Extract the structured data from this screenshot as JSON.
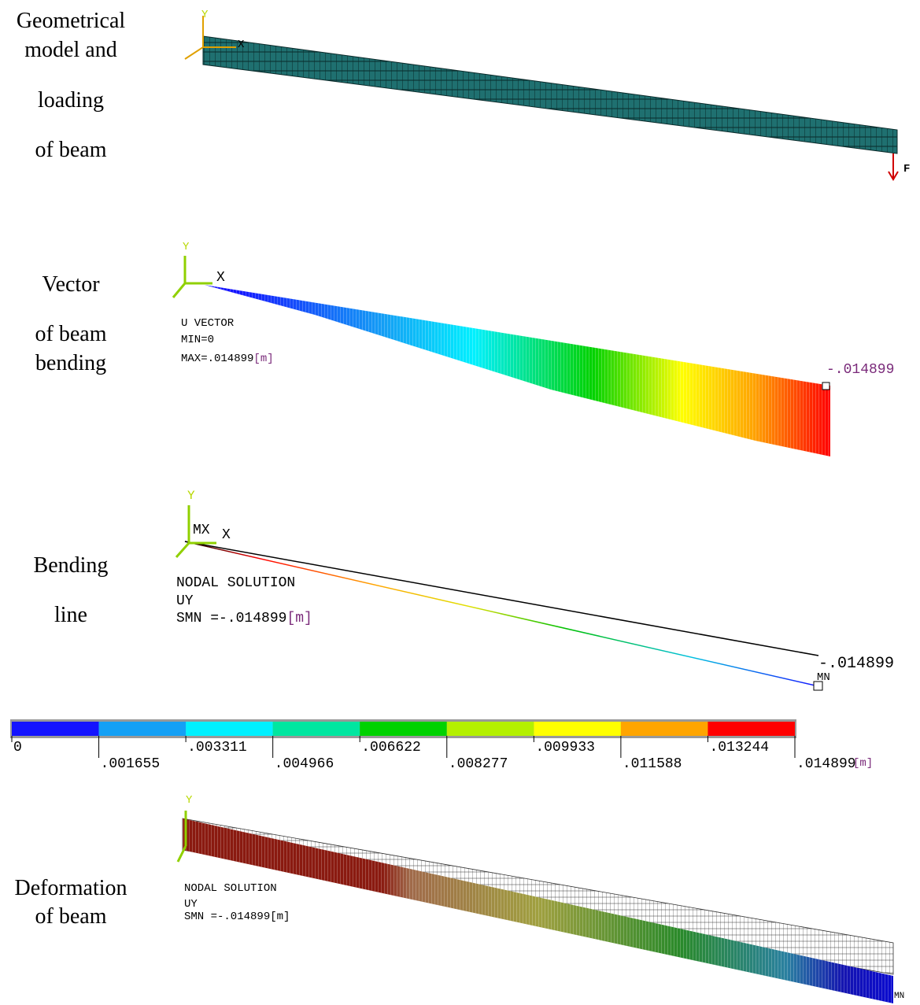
{
  "panels": [
    {
      "caption": [
        "Geometrical",
        "model and",
        "loading",
        "of  beam"
      ],
      "axis_y": "Y",
      "axis_x": "X",
      "force": "F"
    },
    {
      "caption": [
        "Vector",
        "of beam",
        "bending"
      ],
      "axis_y": "Y",
      "axis_x": "X",
      "info": [
        "U  VECTOR",
        "MIN=0",
        "MAX=.014899"
      ],
      "unit": "[m]",
      "max_label": "-.014899"
    },
    {
      "caption": [
        "Bending",
        "line"
      ],
      "axis_y": "Y",
      "axis_x": "X",
      "mx": "MX",
      "info": [
        "NODAL  SOLUTION",
        "UY",
        "SMN =-.014899"
      ],
      "unit": "[m]",
      "max_label": "-.014899",
      "mn": "MN"
    },
    {
      "caption": [
        "Deformation",
        "of beam"
      ],
      "axis_y": "Y",
      "info": [
        "NODAL SOLUTION",
        "UY",
        "SMN =-.014899[m]"
      ],
      "mn": "MN"
    }
  ],
  "legend": {
    "colors": [
      "#1414ff",
      "#14a0f5",
      "#00f0ff",
      "#00e6a0",
      "#00d200",
      "#b4f000",
      "#ffff00",
      "#ffa500",
      "#ff0000"
    ],
    "labels": [
      "0",
      ".001655",
      ".003311",
      ".004966",
      ".006622",
      ".008277",
      ".009933",
      ".011588",
      ".013244",
      ".014899"
    ],
    "unit": "[m]"
  }
}
